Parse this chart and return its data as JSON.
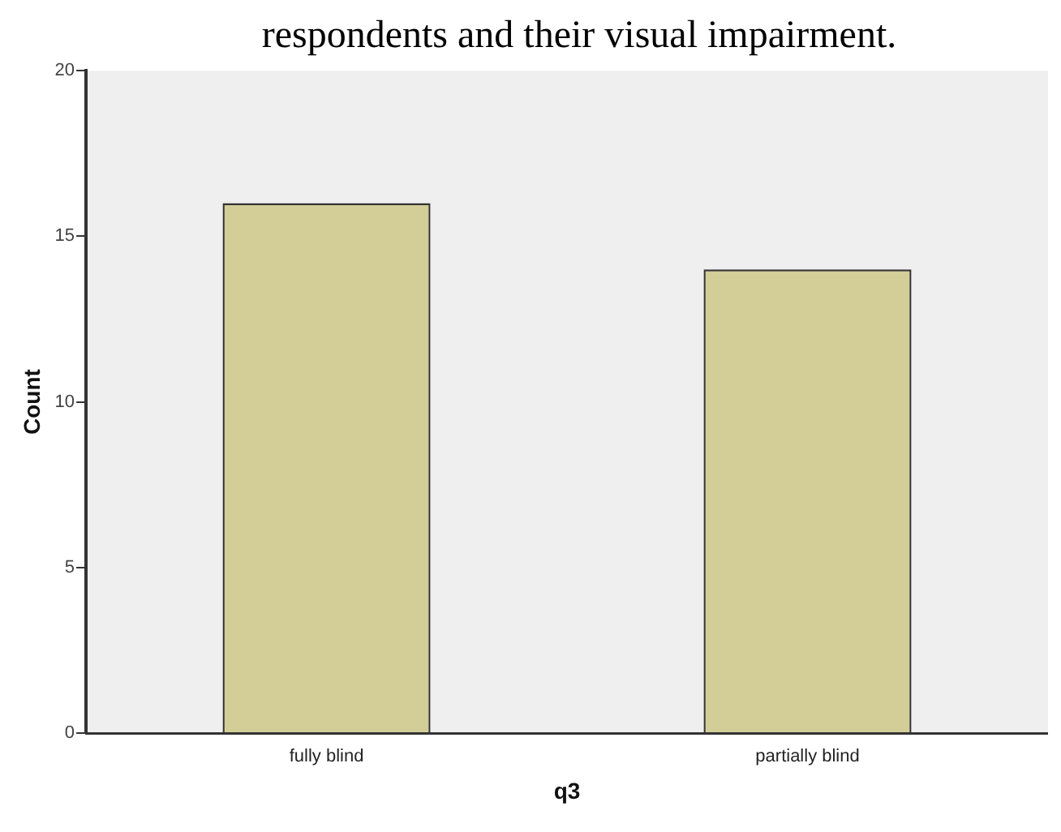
{
  "chart_data": {
    "type": "bar",
    "title": "respondents and their visual impairment.",
    "xlabel": "q3",
    "ylabel": "Count",
    "categories": [
      "fully blind",
      "partially blind"
    ],
    "values": [
      16,
      14
    ],
    "color": "#d3ce97",
    "ylim": [
      0,
      20
    ],
    "yticks": [
      0,
      5,
      10,
      15,
      20
    ],
    "grid": false
  }
}
